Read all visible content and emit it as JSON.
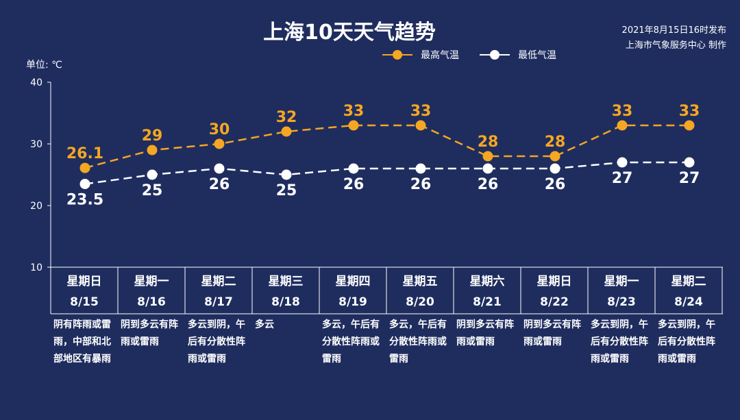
{
  "title": "上海10天天气趋势",
  "pub_date": "2021年8月15日16时发布",
  "producer": "上海市气象服务中心 制作",
  "unit_label": "单位: ℃",
  "colors": {
    "high": "#f5a623",
    "low": "#ffffff",
    "background": "#1f2d5e"
  },
  "chart_data": {
    "type": "line",
    "y_ticks": [
      10,
      20,
      30,
      40
    ],
    "ylim": [
      10,
      40
    ],
    "grid": false,
    "legend_position": "top-right",
    "series": [
      {
        "name": "最高气温",
        "labels": [
          "26.1",
          "29",
          "30",
          "32",
          "33",
          "33",
          "28",
          "28",
          "33",
          "33"
        ],
        "values": [
          26.1,
          29,
          30,
          32,
          33,
          33,
          28,
          28,
          33,
          33
        ]
      },
      {
        "name": "最低气温",
        "labels": [
          "23.5",
          "25",
          "26",
          "25",
          "26",
          "26",
          "26",
          "26",
          "27",
          "27"
        ],
        "values": [
          23.5,
          25,
          26,
          25,
          26,
          26,
          26,
          26,
          27,
          27
        ]
      }
    ],
    "categories": [
      {
        "weekday": "星期日",
        "date": "8/15",
        "desc": "阴有阵雨或雷雨，中部和北部地区有暴雨"
      },
      {
        "weekday": "星期一",
        "date": "8/16",
        "desc": "阴到多云有阵雨或雷雨"
      },
      {
        "weekday": "星期二",
        "date": "8/17",
        "desc": "多云到阴，午后有分散性阵雨或雷雨"
      },
      {
        "weekday": "星期三",
        "date": "8/18",
        "desc": "多云"
      },
      {
        "weekday": "星期四",
        "date": "8/19",
        "desc": "多云，午后有分散性阵雨或雷雨"
      },
      {
        "weekday": "星期五",
        "date": "8/20",
        "desc": "多云，午后有分散性阵雨或雷雨"
      },
      {
        "weekday": "星期六",
        "date": "8/21",
        "desc": "阴到多云有阵雨或雷雨"
      },
      {
        "weekday": "星期日",
        "date": "8/22",
        "desc": "阴到多云有阵雨或雷雨"
      },
      {
        "weekday": "星期一",
        "date": "8/23",
        "desc": "多云到阴，午后有分散性阵雨或雷雨"
      },
      {
        "weekday": "星期二",
        "date": "8/24",
        "desc": "多云到阴，午后有分散性阵雨或雷雨"
      }
    ]
  }
}
